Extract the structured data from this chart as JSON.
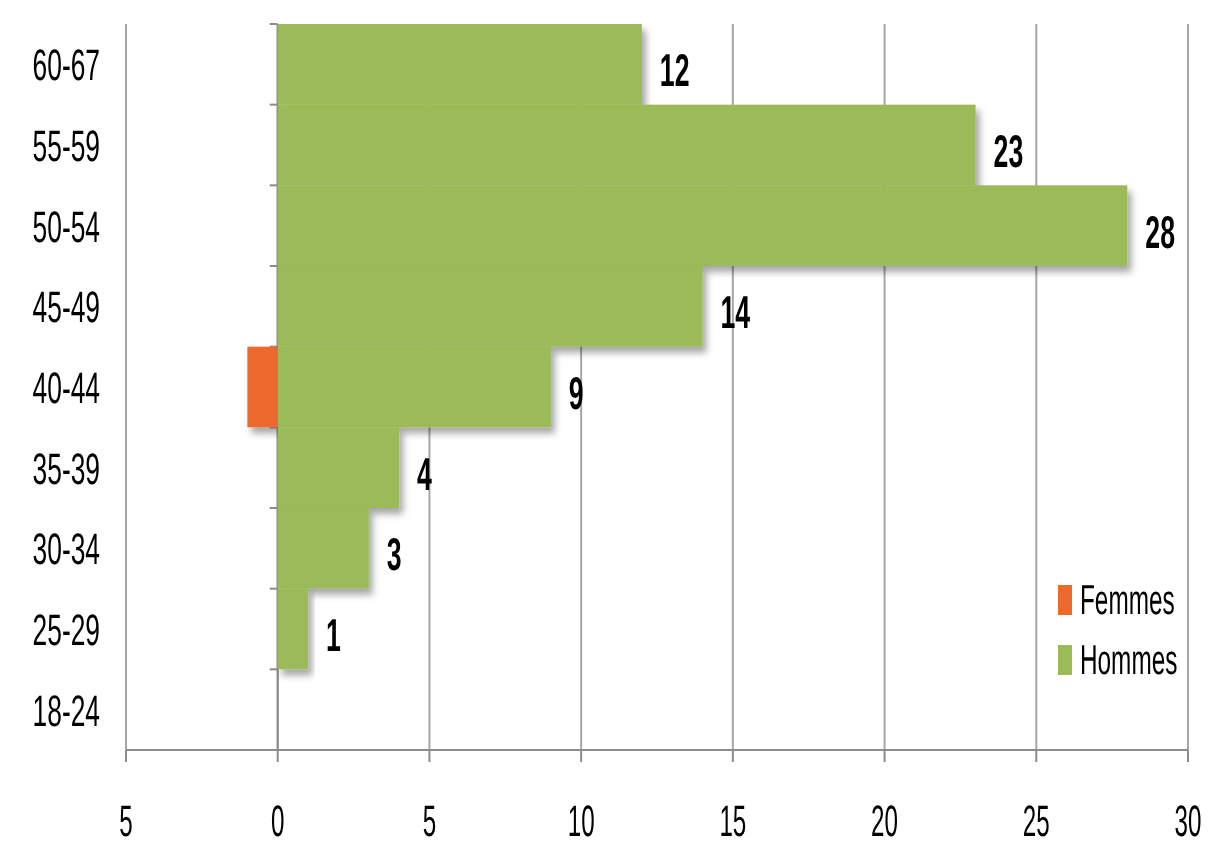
{
  "chart_data": {
    "type": "bar",
    "orientation": "horizontal",
    "stacked": true,
    "categories": [
      "60-67",
      "55-59",
      "50-54",
      "45-49",
      "40-44",
      "35-39",
      "30-34",
      "25-29",
      "18-24"
    ],
    "series": [
      {
        "name": "Femmes",
        "color": "#ed6a2f",
        "values": [
          null,
          null,
          null,
          null,
          -1,
          null,
          null,
          null,
          null
        ]
      },
      {
        "name": "Hommes",
        "color": "#9bbb59",
        "values": [
          12,
          23,
          28,
          14,
          9,
          4,
          3,
          1,
          null
        ],
        "value_labels": [
          "12",
          "23",
          "28",
          "14",
          "9",
          "4",
          "3",
          "1",
          null
        ]
      }
    ],
    "xlim": [
      -5,
      30
    ],
    "xticks": [
      {
        "value": -5,
        "label": "5"
      },
      0,
      5,
      10,
      15,
      20,
      25,
      30
    ],
    "grid": "x",
    "legend": "bottom right"
  }
}
